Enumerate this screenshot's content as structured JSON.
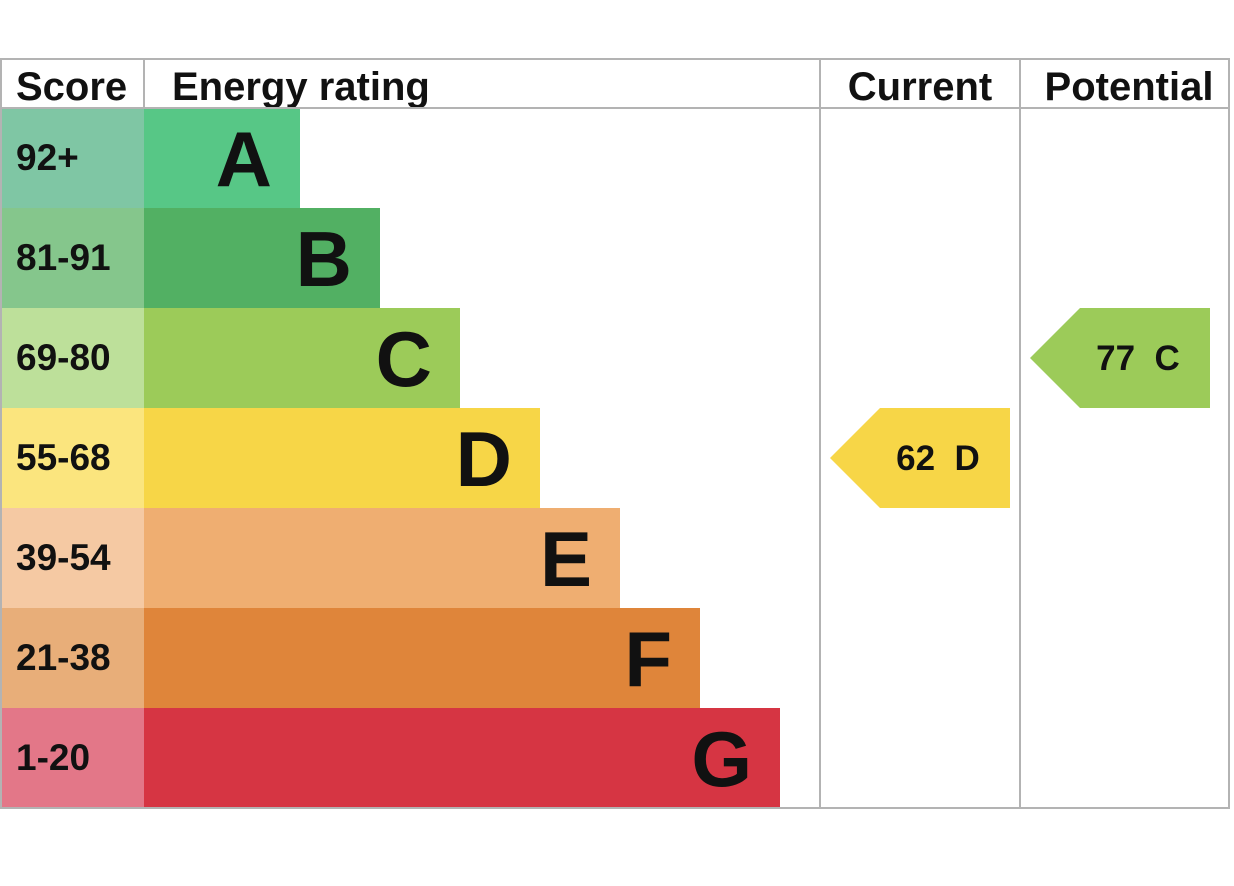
{
  "headers": {
    "score": "Score",
    "rating": "Energy rating",
    "current": "Current",
    "potential": "Potential"
  },
  "chart_data": {
    "type": "bar",
    "bands": [
      {
        "letter": "A",
        "range": "92+",
        "color": "#57c786",
        "score_color": "#7fc6a4"
      },
      {
        "letter": "B",
        "range": "81-91",
        "color": "#52b063",
        "score_color": "#85c68c"
      },
      {
        "letter": "C",
        "range": "69-80",
        "color": "#9ccb59",
        "score_color": "#bde09a"
      },
      {
        "letter": "D",
        "range": "55-68",
        "color": "#f7d647",
        "score_color": "#fbe57e"
      },
      {
        "letter": "E",
        "range": "39-54",
        "color": "#efae71",
        "score_color": "#f5c9a3"
      },
      {
        "letter": "F",
        "range": "21-38",
        "color": "#df853a",
        "score_color": "#e8ae79"
      },
      {
        "letter": "G",
        "range": "1-20",
        "color": "#d63543",
        "score_color": "#e37788"
      }
    ],
    "current": {
      "value": 62,
      "letter": "D",
      "label": "62  D",
      "color": "#f7d647"
    },
    "potential": {
      "value": 77,
      "letter": "C",
      "label": "77  C",
      "color": "#9ccb59"
    }
  }
}
